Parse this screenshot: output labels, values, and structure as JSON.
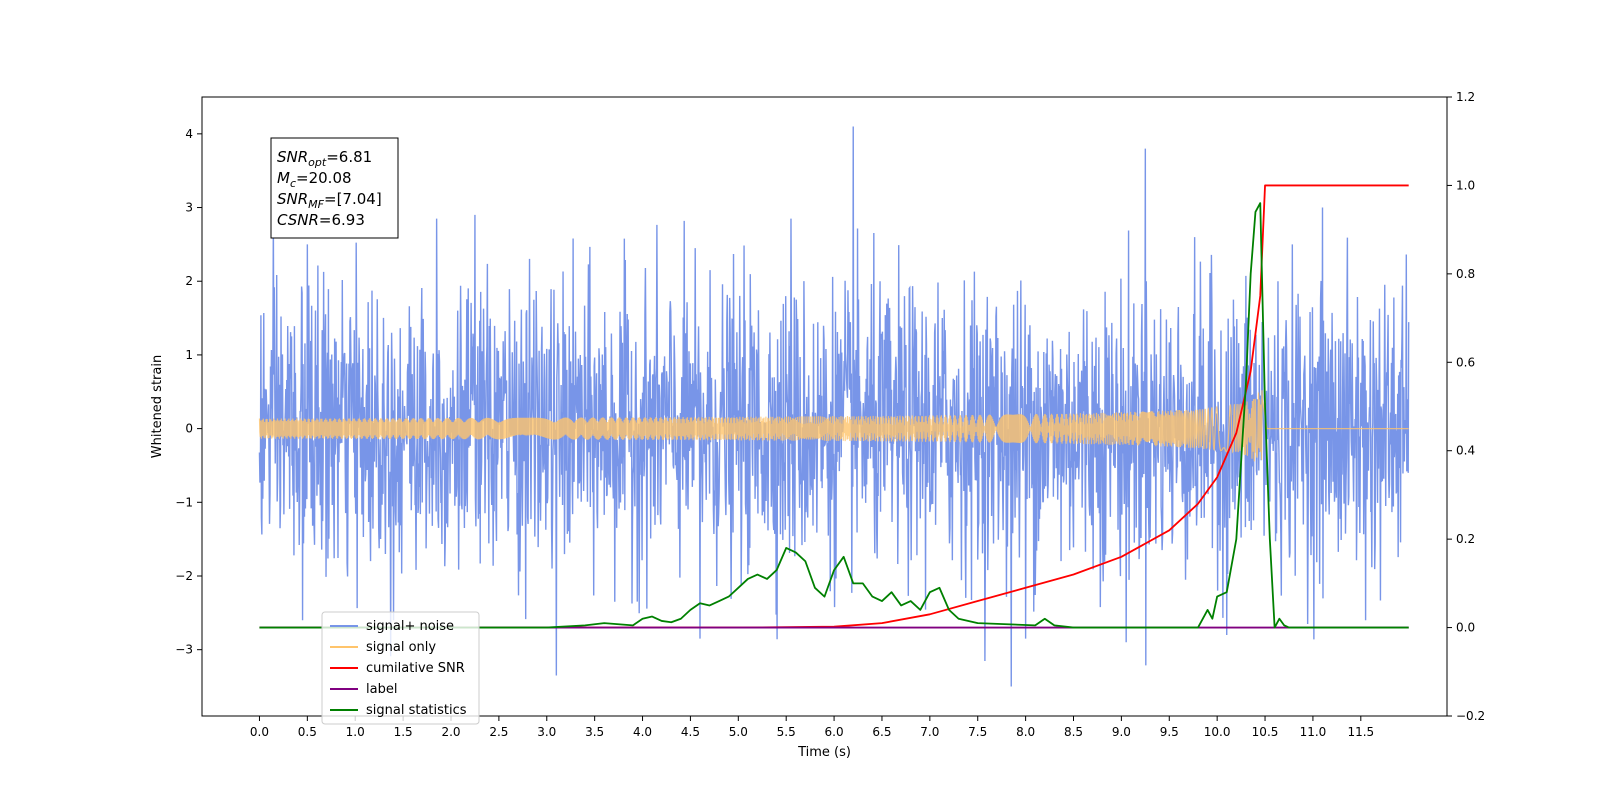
{
  "chart_data": {
    "type": "line",
    "title": "",
    "xlabel": "Time (s)",
    "ylabel": "Whitened strain",
    "xlim": [
      -0.6,
      12.4
    ],
    "ylim": [
      -3.9,
      4.5
    ],
    "y2lim": [
      -0.2,
      1.2
    ],
    "x_ticks": [
      0.0,
      0.5,
      1.0,
      1.5,
      2.0,
      2.5,
      3.0,
      3.5,
      4.0,
      4.5,
      5.0,
      5.5,
      6.0,
      6.5,
      7.0,
      7.5,
      8.0,
      8.5,
      9.0,
      9.5,
      10.0,
      10.5,
      11.0,
      11.5
    ],
    "x_tick_labels": [
      "0.0",
      "0.5",
      "1.0",
      "1.5",
      "2.0",
      "2.5",
      "3.0",
      "3.5",
      "4.0",
      "4.5",
      "5.0",
      "5.5",
      "6.0",
      "6.5",
      "7.0",
      "7.5",
      "8.0",
      "8.5",
      "9.0",
      "9.5",
      "10.0",
      "10.5",
      "11.0",
      "11.5"
    ],
    "y_ticks": [
      -3,
      -2,
      -1,
      0,
      1,
      2,
      3,
      4
    ],
    "y_tick_labels": [
      "−3",
      "−2",
      "−1",
      "0",
      "1",
      "2",
      "3",
      "4"
    ],
    "y2_ticks": [
      -0.2,
      0.0,
      0.2,
      0.4,
      0.6,
      0.8,
      1.0,
      1.2
    ],
    "y2_tick_labels": [
      "−0.2",
      "0.0",
      "0.2",
      "0.4",
      "0.6",
      "0.8",
      "1.0",
      "1.2"
    ],
    "annotation": {
      "lines": [
        {
          "base": "SNR",
          "sub": "opt",
          "value": "=6.81"
        },
        {
          "base": "M",
          "sub": "c",
          "value": "=20.08"
        },
        {
          "base": "SNR",
          "sub": "MF",
          "value": "=[7.04]"
        },
        {
          "base": "CSNR",
          "sub": "",
          "value": "=6.93"
        }
      ]
    },
    "legend": {
      "placement": "lower-left",
      "entries": [
        {
          "label": "signal+ noise",
          "color": "#7895e8"
        },
        {
          "label": "signal only",
          "color": "#ffc46b"
        },
        {
          "label": "cumilative SNR",
          "color": "#ff0000"
        },
        {
          "label": "label",
          "color": "#800080"
        },
        {
          "label": "signal statistics",
          "color": "#008000"
        }
      ]
    },
    "series": [
      {
        "name": "signal+ noise",
        "color": "#7895e8",
        "axis": "left",
        "x_range": [
          0.0,
          12.0
        ],
        "approx_std": 1.0,
        "spikes": [
          [
            0.5,
            2.5
          ],
          [
            0.45,
            -2.6
          ],
          [
            1.4,
            -2.6
          ],
          [
            3.1,
            -3.35
          ],
          [
            4.6,
            2.5
          ],
          [
            4.6,
            -2.85
          ],
          [
            5.55,
            2.85
          ],
          [
            6.2,
            4.1
          ],
          [
            7.85,
            -3.5
          ],
          [
            8.0,
            -2.85
          ],
          [
            9.05,
            -2.9
          ],
          [
            9.25,
            3.8
          ],
          [
            10.1,
            -2.8
          ],
          [
            11.1,
            3.0
          ],
          [
            11.55,
            -2.6
          ],
          [
            1.85,
            2.85
          ],
          [
            2.25,
            2.9
          ]
        ]
      },
      {
        "name": "signal only",
        "color": "#ffc46b",
        "axis": "left",
        "chirp": {
          "t_merge": 10.45,
          "amplitude_at_merge": 1.0,
          "end": 10.52
        },
        "x_range": [
          0.0,
          12.0
        ]
      },
      {
        "name": "cumilative SNR",
        "color": "#ff0000",
        "axis": "right",
        "x": [
          0.0,
          5.0,
          6.0,
          6.5,
          7.0,
          7.5,
          8.0,
          8.5,
          9.0,
          9.5,
          9.8,
          10.0,
          10.2,
          10.35,
          10.45,
          10.5,
          12.0
        ],
        "values": [
          0.0,
          0.0,
          0.002,
          0.01,
          0.03,
          0.06,
          0.09,
          0.12,
          0.16,
          0.22,
          0.28,
          0.34,
          0.44,
          0.58,
          0.75,
          1.0,
          1.0
        ]
      },
      {
        "name": "label",
        "color": "#800080",
        "axis": "right",
        "x": [
          0.0,
          12.0
        ],
        "values": [
          0.0,
          0.0
        ]
      },
      {
        "name": "signal statistics",
        "color": "#008000",
        "axis": "right",
        "x": [
          0.0,
          3.0,
          3.4,
          3.6,
          3.9,
          4.0,
          4.1,
          4.2,
          4.3,
          4.4,
          4.5,
          4.6,
          4.7,
          4.8,
          4.9,
          5.0,
          5.1,
          5.2,
          5.3,
          5.4,
          5.5,
          5.6,
          5.7,
          5.8,
          5.9,
          6.0,
          6.1,
          6.2,
          6.3,
          6.4,
          6.5,
          6.6,
          6.7,
          6.8,
          6.9,
          7.0,
          7.1,
          7.2,
          7.3,
          7.5,
          8.1,
          8.2,
          8.3,
          8.5,
          9.8,
          9.9,
          9.95,
          10.0,
          10.1,
          10.2,
          10.3,
          10.35,
          10.4,
          10.45,
          10.5,
          10.55,
          10.6,
          10.65,
          10.7,
          10.75,
          12.0
        ],
        "values": [
          0.0,
          0.0,
          0.005,
          0.01,
          0.005,
          0.02,
          0.025,
          0.015,
          0.012,
          0.02,
          0.04,
          0.055,
          0.05,
          0.06,
          0.07,
          0.09,
          0.11,
          0.12,
          0.11,
          0.13,
          0.18,
          0.17,
          0.15,
          0.09,
          0.07,
          0.13,
          0.16,
          0.1,
          0.1,
          0.07,
          0.06,
          0.08,
          0.05,
          0.06,
          0.04,
          0.08,
          0.09,
          0.04,
          0.02,
          0.01,
          0.005,
          0.02,
          0.005,
          0.0,
          0.0,
          0.04,
          0.02,
          0.07,
          0.08,
          0.2,
          0.55,
          0.8,
          0.94,
          0.96,
          0.5,
          0.2,
          0.0,
          0.02,
          0.005,
          0.0,
          0.0
        ]
      }
    ]
  }
}
